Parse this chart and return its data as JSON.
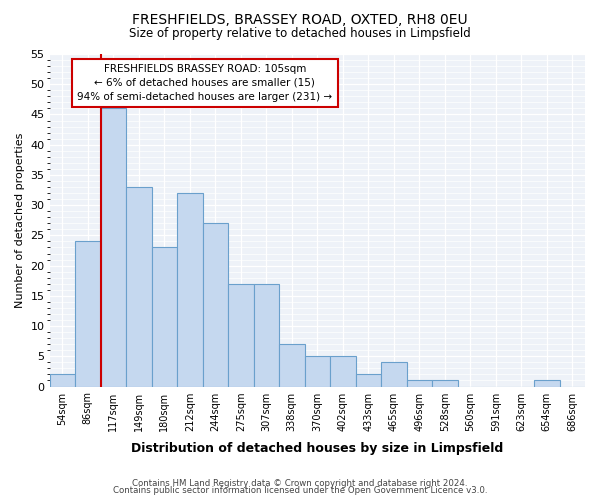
{
  "title": "FRESHFIELDS, BRASSEY ROAD, OXTED, RH8 0EU",
  "subtitle": "Size of property relative to detached houses in Limpsfield",
  "xlabel": "Distribution of detached houses by size in Limpsfield",
  "ylabel": "Number of detached properties",
  "categories": [
    "54sqm",
    "86sqm",
    "117sqm",
    "149sqm",
    "180sqm",
    "212sqm",
    "244sqm",
    "275sqm",
    "307sqm",
    "338sqm",
    "370sqm",
    "402sqm",
    "433sqm",
    "465sqm",
    "496sqm",
    "528sqm",
    "560sqm",
    "591sqm",
    "623sqm",
    "654sqm",
    "686sqm"
  ],
  "values": [
    2,
    24,
    46,
    33,
    23,
    32,
    27,
    17,
    17,
    7,
    5,
    5,
    2,
    4,
    1,
    1,
    0,
    0,
    0,
    1,
    0
  ],
  "bar_color": "#c5d8ef",
  "bar_edge_color": "#6aa0cc",
  "ylim": [
    0,
    55
  ],
  "yticks": [
    0,
    5,
    10,
    15,
    20,
    25,
    30,
    35,
    40,
    45,
    50,
    55
  ],
  "vline_color": "#cc0000",
  "annotation_title": "FRESHFIELDS BRASSEY ROAD: 105sqm",
  "annotation_line1": "← 6% of detached houses are smaller (15)",
  "annotation_line2": "94% of semi-detached houses are larger (231) →",
  "annotation_box_color": "#ffffff",
  "annotation_box_edge": "#cc0000",
  "bg_color": "#eef2f8",
  "footer1": "Contains HM Land Registry data © Crown copyright and database right 2024.",
  "footer2": "Contains public sector information licensed under the Open Government Licence v3.0."
}
